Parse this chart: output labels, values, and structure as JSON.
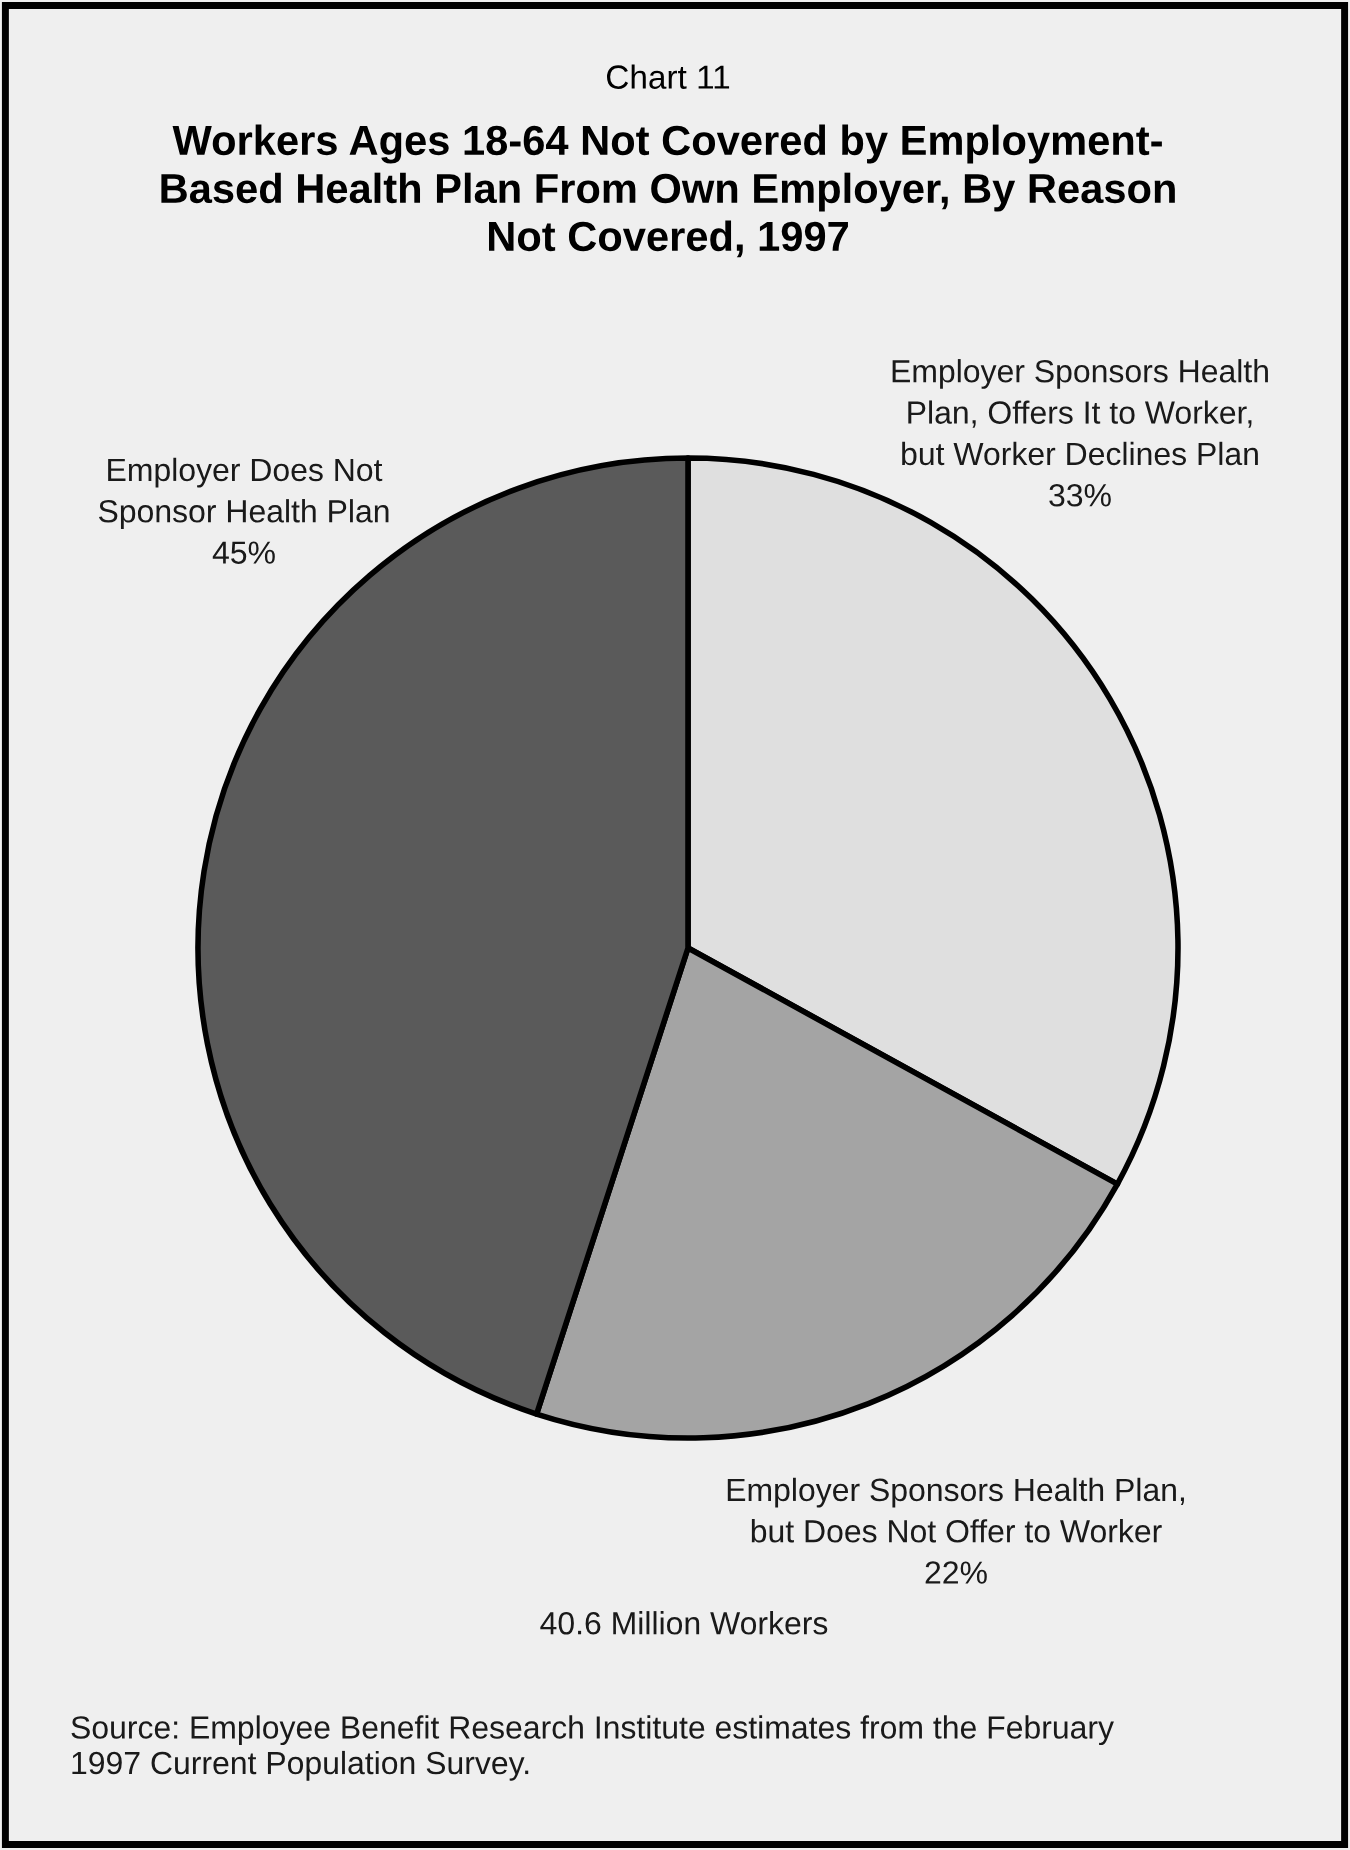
{
  "chart_data": {
    "type": "pie",
    "subtitle": "Chart 11",
    "title": "Workers Ages 18-64 Not Covered by Employment-\nBased Health Plan From Own Employer, By Reason\nNot Covered, 1997",
    "categories": [
      "Employer Sponsors Health\nPlan, Offers It to Worker,\nbut Worker Declines Plan",
      "Employer Sponsors Health Plan,\nbut Does Not Offer to Worker",
      "Employer Does Not\nSponsor Health Plan"
    ],
    "values": [
      33,
      22,
      45
    ],
    "value_labels": [
      "33%",
      "22%",
      "45%"
    ],
    "colors": [
      "#dfdfdf",
      "#a4a4a4",
      "#5a5a5a"
    ],
    "annotations": [
      "40.6 Million Workers",
      "Source: Employee Benefit Research Institute estimates from the February\n1997 Current Population Survey."
    ]
  }
}
